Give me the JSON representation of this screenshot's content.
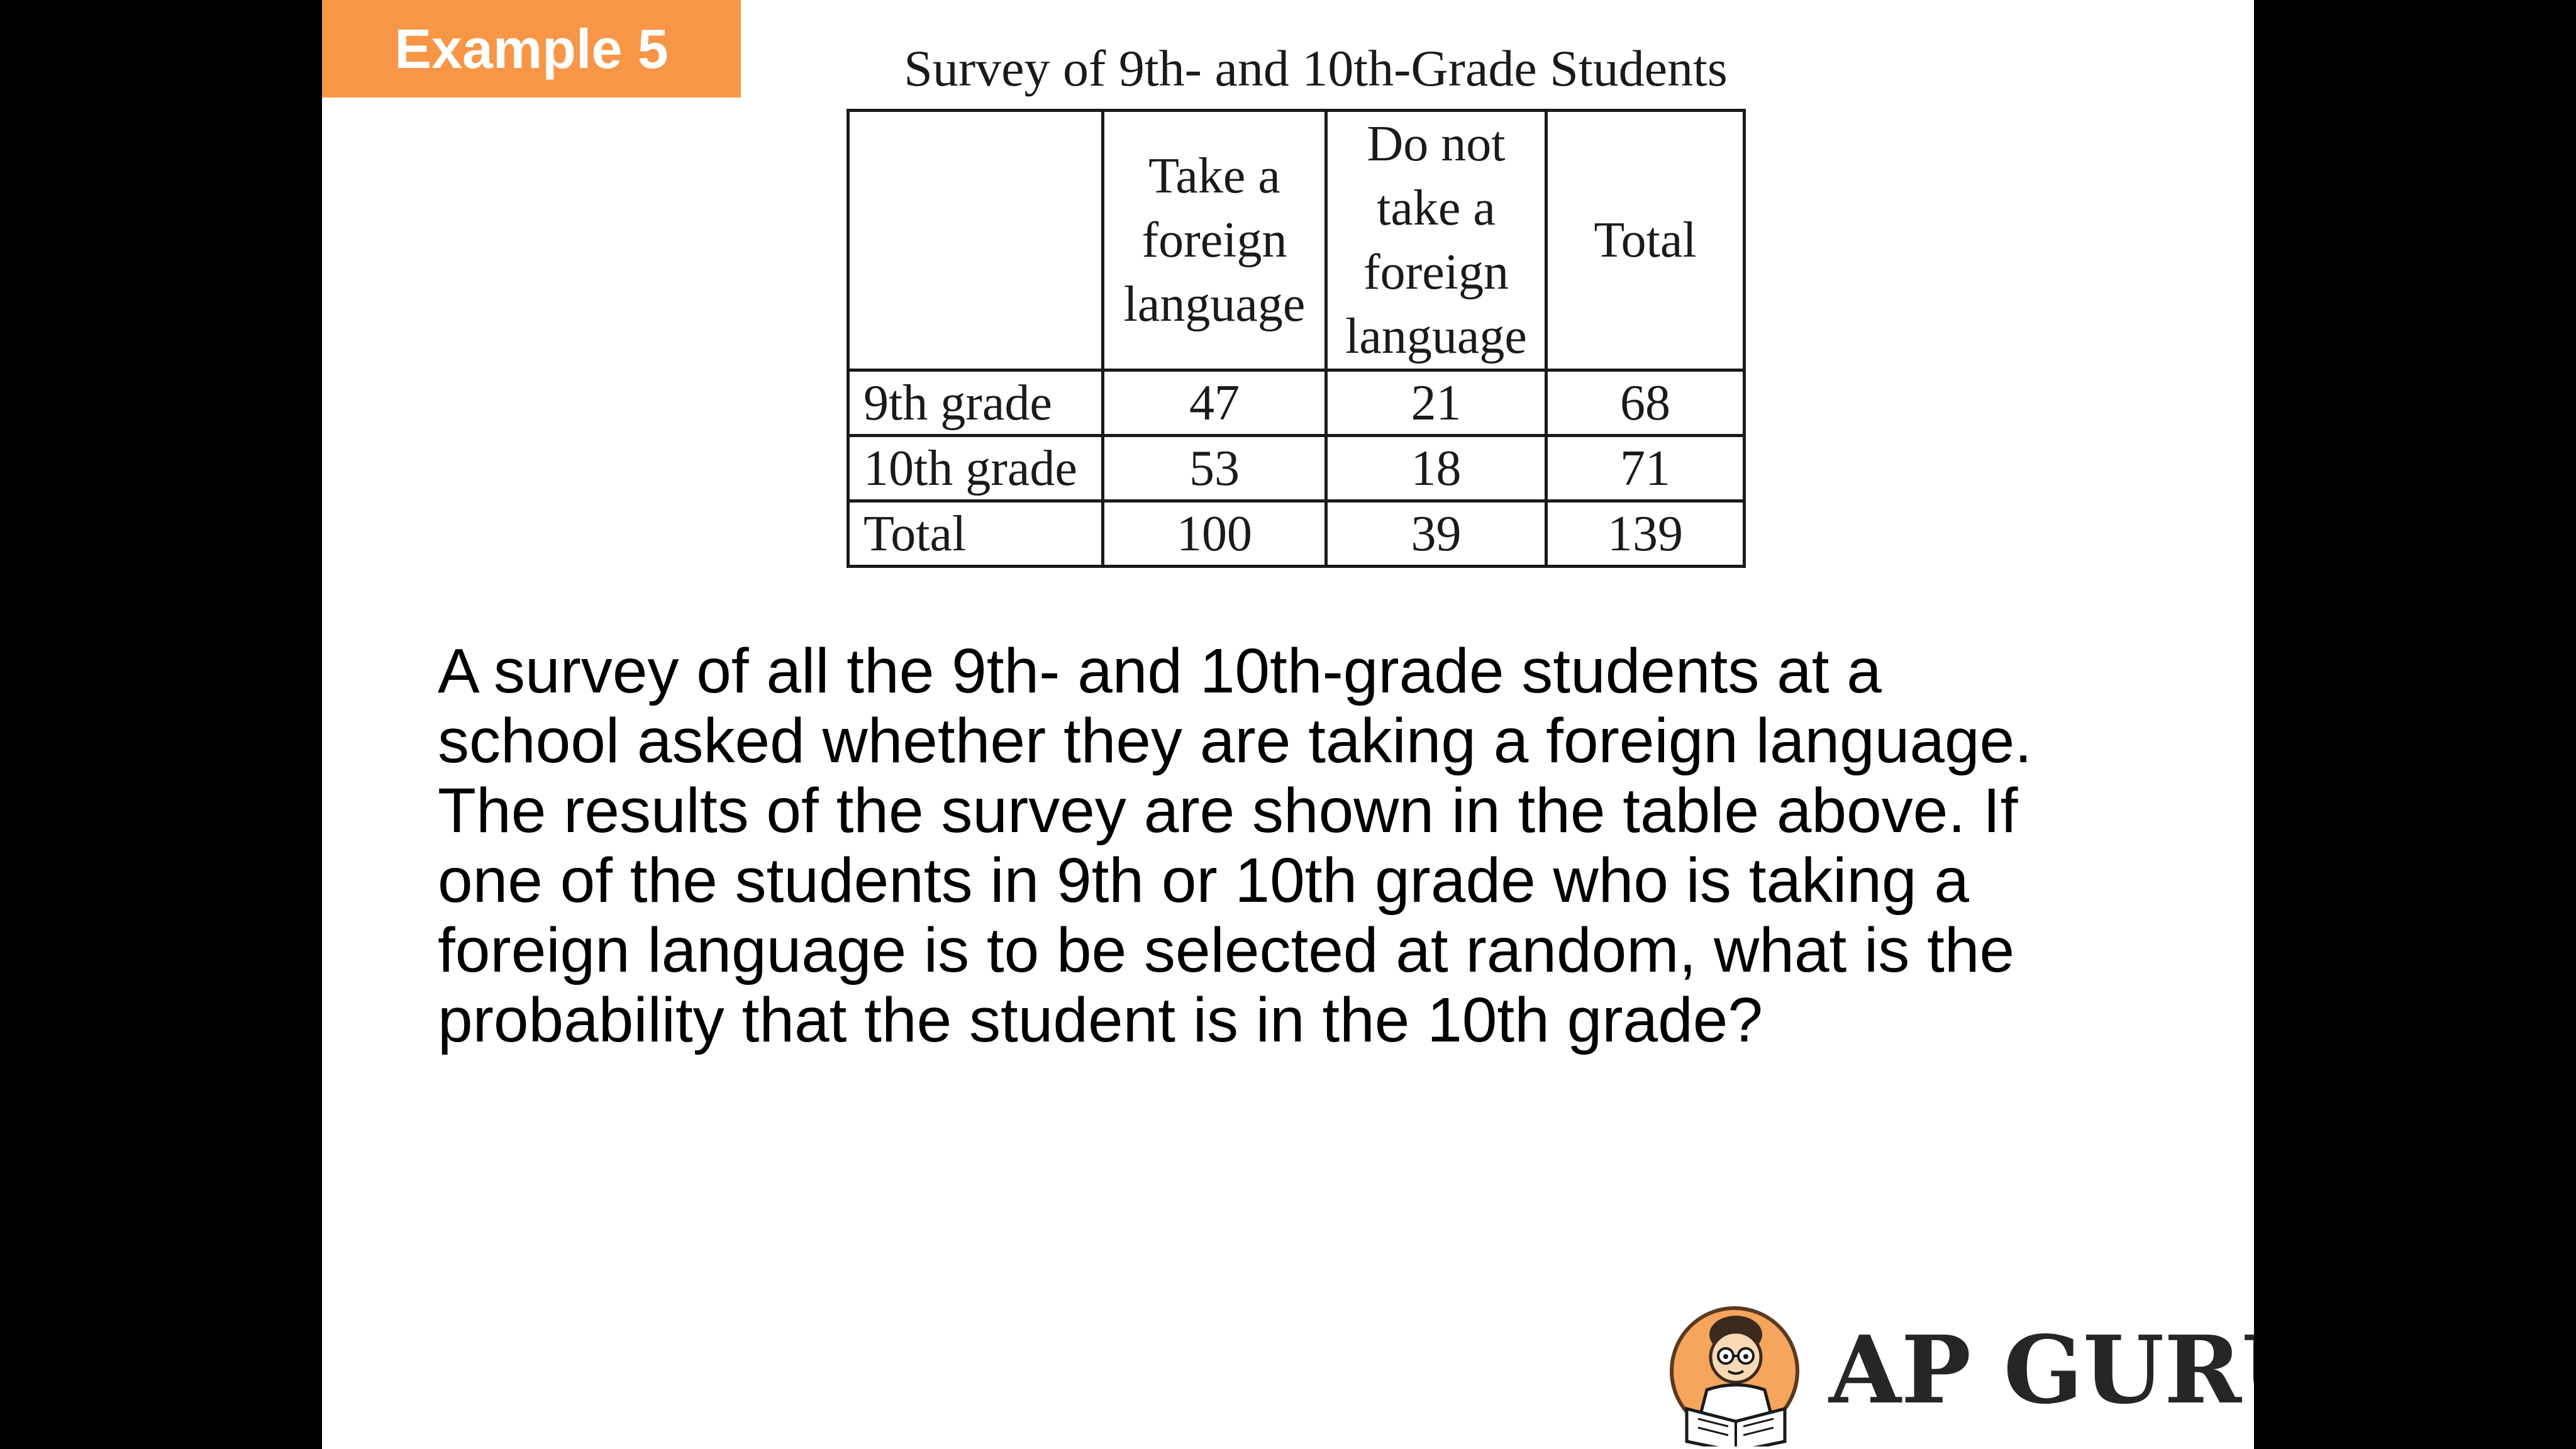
{
  "badge": "Example 5",
  "table": {
    "title": "Survey of 9th- and 10th-Grade Students",
    "header": {
      "corner": "",
      "take": [
        "Take a",
        "foreign",
        "language"
      ],
      "do_not": [
        "Do not",
        "take a",
        "foreign",
        "language"
      ],
      "total": "Total"
    },
    "rows": [
      {
        "label": "9th grade",
        "take": "47",
        "do_not": "21",
        "total": "68"
      },
      {
        "label": "10th grade",
        "take": "53",
        "do_not": "18",
        "total": "71"
      },
      {
        "label": "Total",
        "take": "100",
        "do_not": "39",
        "total": "139"
      }
    ]
  },
  "question_lines": [
    "A survey of all the 9th- and 10th-grade students at a",
    "school asked whether they are taking a foreign language.",
    "The results of the survey are shown in the table above. If",
    "one of the students in 9th or 10th grade who is taking a",
    "foreign language is to be selected at random, what is the",
    "probability that the student is in the 10th grade?"
  ],
  "logo": {
    "text": "AP GURU",
    "icon": "reading-student-icon",
    "colors": {
      "circle": "#f6a55c",
      "text": "#262626"
    }
  },
  "colors": {
    "badge_bg": "#f79646",
    "badge_text": "#ffffff",
    "slide_bg": "#ffffff",
    "letterbox": "#000000"
  }
}
